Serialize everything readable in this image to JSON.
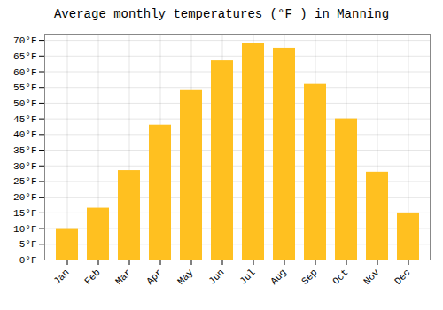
{
  "chart_data": {
    "type": "bar",
    "title": "Average monthly temperatures (°F ) in Manning",
    "categories": [
      "Jan",
      "Feb",
      "Mar",
      "Apr",
      "May",
      "Jun",
      "Jul",
      "Aug",
      "Sep",
      "Oct",
      "Nov",
      "Dec"
    ],
    "values": [
      10,
      16.5,
      28.5,
      43,
      54,
      63.5,
      69,
      67.5,
      56,
      45,
      28,
      15
    ],
    "color": "#FFC020",
    "ylim": [
      0,
      72
    ],
    "yticks": [
      {
        "value": 0,
        "label": "0°F"
      },
      {
        "value": 5,
        "label": "5°F"
      },
      {
        "value": 10,
        "label": "10°F"
      },
      {
        "value": 15,
        "label": "15°F"
      },
      {
        "value": 20,
        "label": "20°F"
      },
      {
        "value": 25,
        "label": "25°F"
      },
      {
        "value": 30,
        "label": "30°F"
      },
      {
        "value": 35,
        "label": "35°F"
      },
      {
        "value": 40,
        "label": "40°F"
      },
      {
        "value": 45,
        "label": "45°F"
      },
      {
        "value": 50,
        "label": "50°F"
      },
      {
        "value": 55,
        "label": "55°F"
      },
      {
        "value": 60,
        "label": "60°F"
      },
      {
        "value": 65,
        "label": "65°F"
      },
      {
        "value": 70,
        "label": "70°F"
      }
    ],
    "grid": true
  }
}
